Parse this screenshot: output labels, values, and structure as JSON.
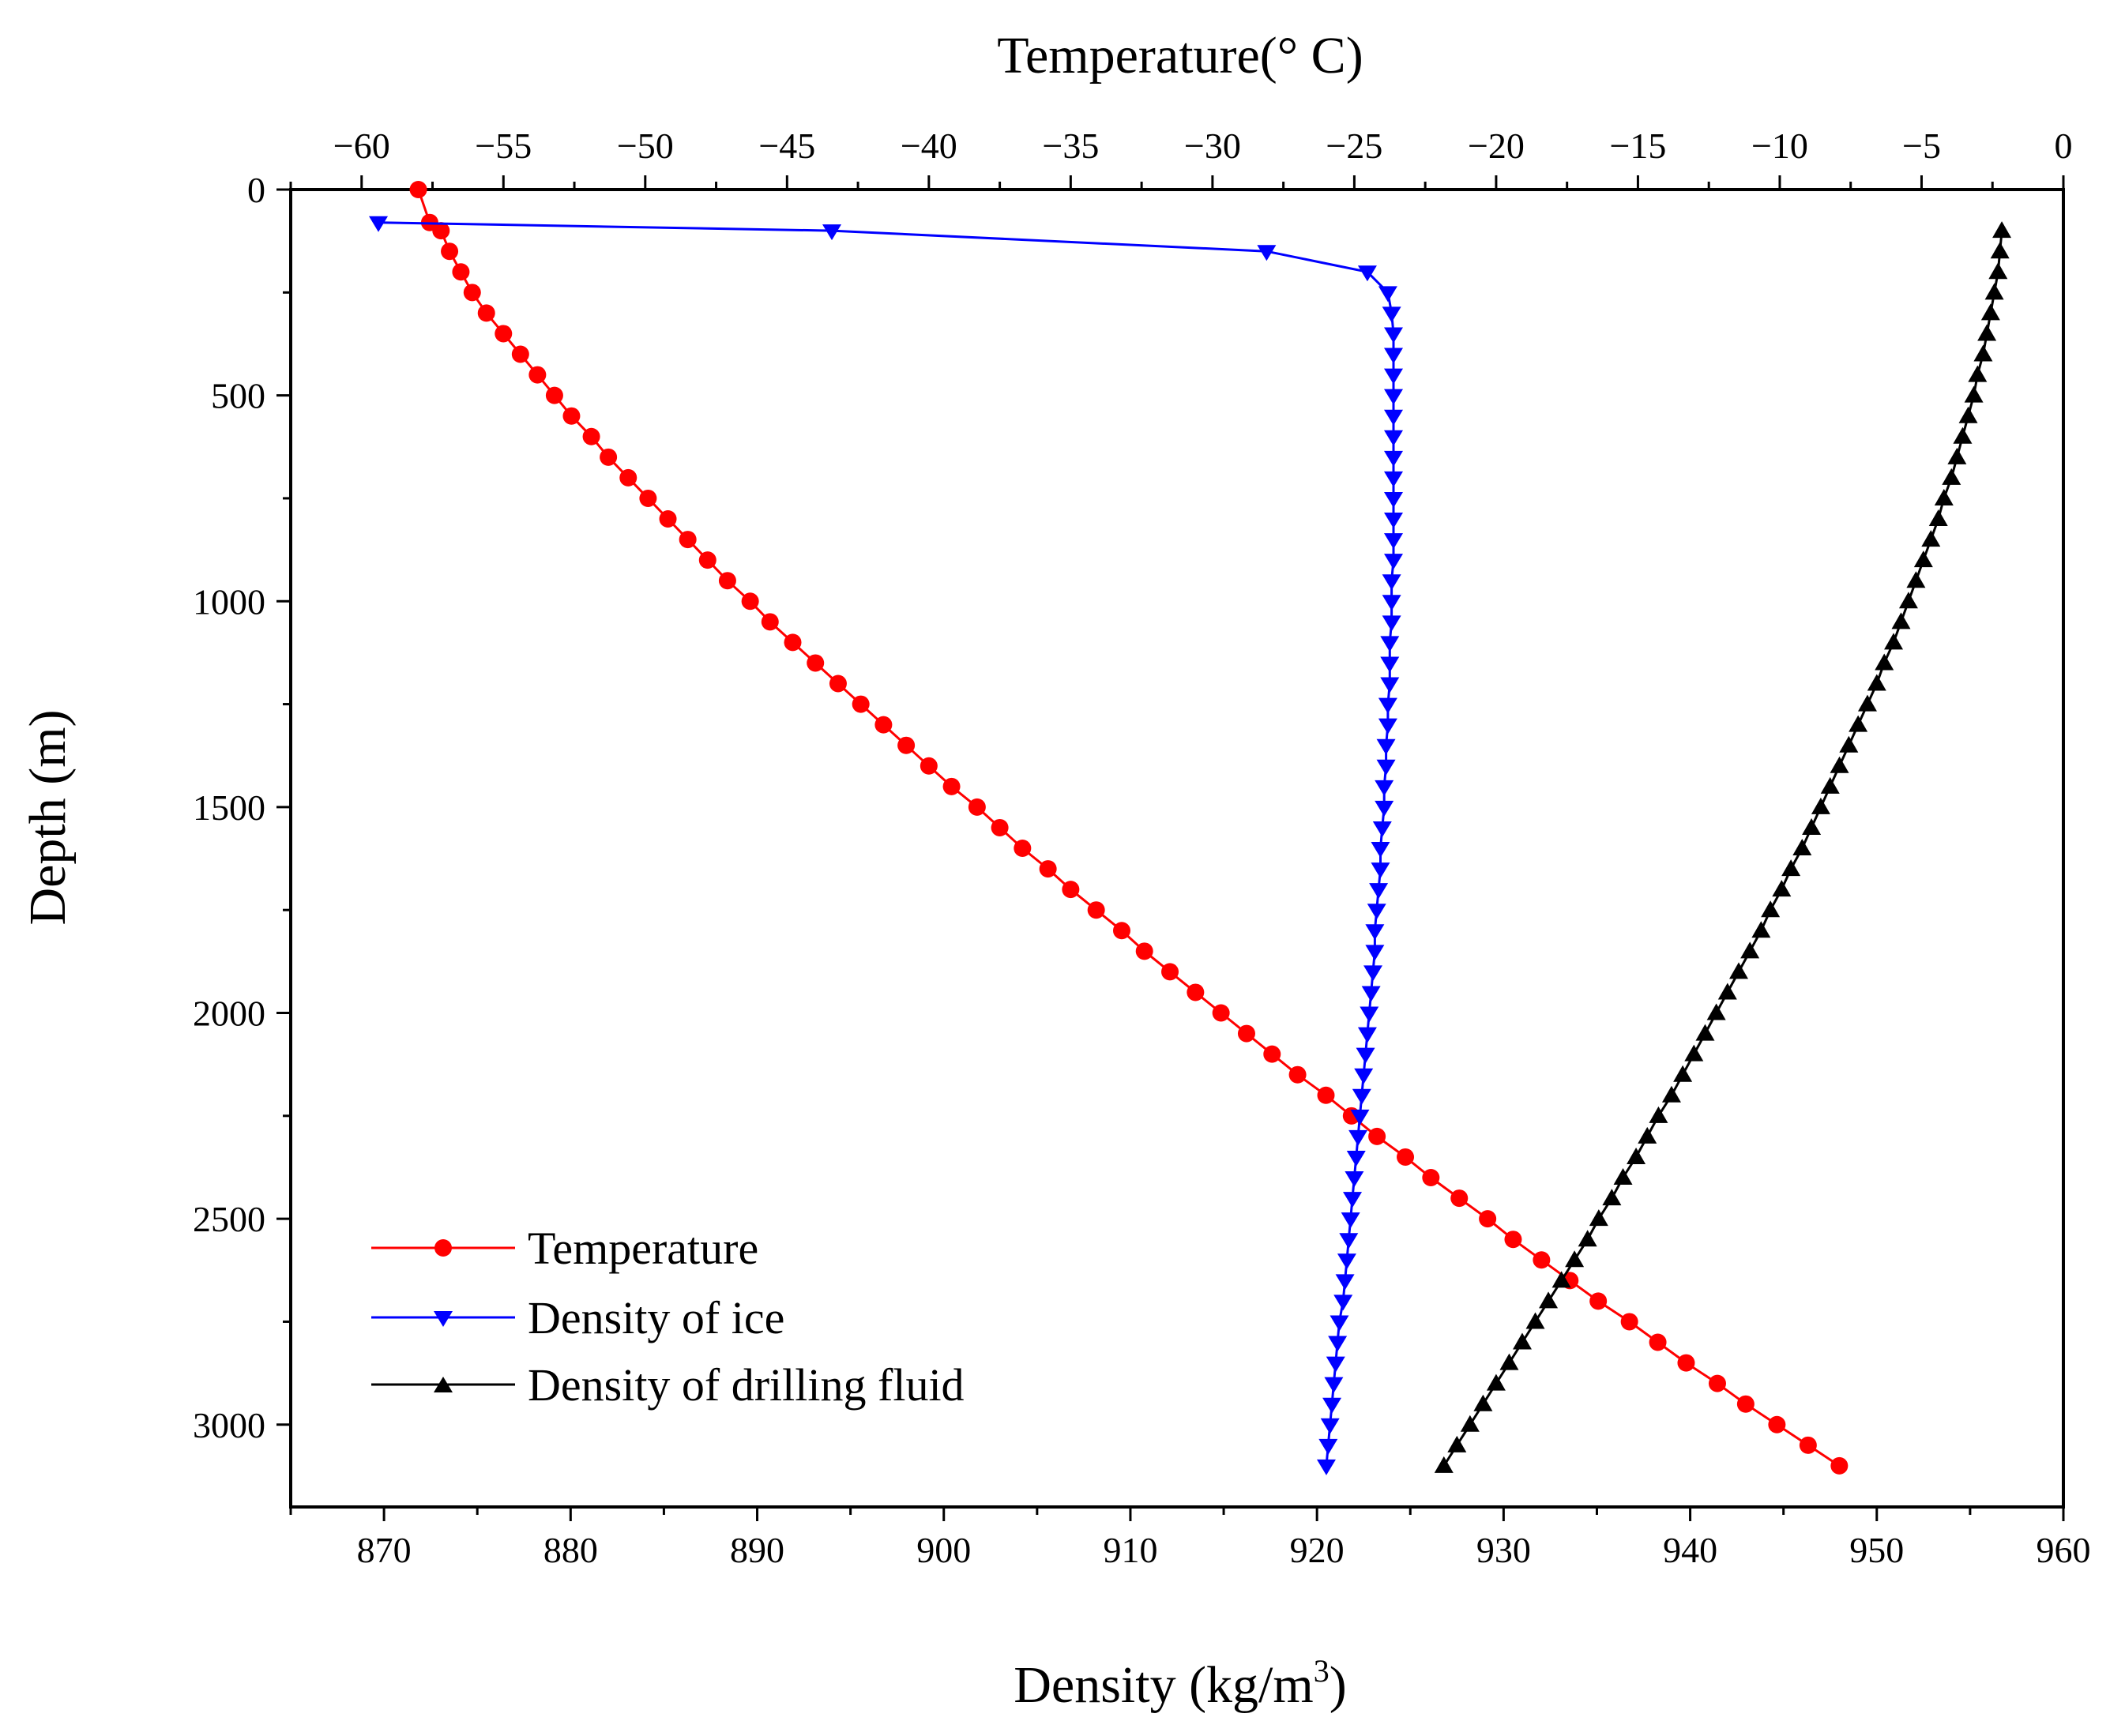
{
  "chart_data": {
    "type": "line",
    "title": "",
    "x_bottom": {
      "label": "Density (kg/m",
      "label_superscript": "3",
      "label_suffix": ")",
      "range": [
        865,
        960
      ],
      "ticks": [
        870,
        880,
        890,
        900,
        910,
        920,
        930,
        940,
        950,
        960
      ],
      "tick_labels": [
        "870",
        "880",
        "890",
        "900",
        "910",
        "920",
        "930",
        "940",
        "950",
        "960"
      ]
    },
    "x_top": {
      "label": "Temperature(° C)",
      "range": [
        -62.5,
        0
      ],
      "ticks": [
        -60,
        -55,
        -50,
        -45,
        -40,
        -35,
        -30,
        -25,
        -20,
        -15,
        -10,
        -5,
        0
      ],
      "tick_labels": [
        "−60",
        "−55",
        "−50",
        "−45",
        "−40",
        "−35",
        "−30",
        "−25",
        "−20",
        "−15",
        "−10",
        "−5",
        "0"
      ]
    },
    "y": {
      "label": "Depth (m)",
      "range": [
        0,
        3200
      ],
      "inverted": true,
      "ticks": [
        0,
        500,
        1000,
        1500,
        2000,
        2500,
        3000
      ],
      "tick_labels": [
        "0",
        "500",
        "1000",
        "1500",
        "2000",
        "2500",
        "3000"
      ]
    },
    "legend": {
      "position": "bottom-left",
      "entries": [
        {
          "name": "Temperature",
          "color": "#ff0000",
          "marker": "circle"
        },
        {
          "name": "Density of ice",
          "color": "#0000ff",
          "marker": "triangle-down"
        },
        {
          "name": "Density of drilling fluid",
          "color": "#000000",
          "marker": "triangle-up"
        }
      ]
    },
    "series": [
      {
        "name": "Temperature",
        "axis": "top",
        "color": "#ff0000",
        "marker": "circle",
        "points": [
          [
            -58,
            0
          ],
          [
            -57.6,
            80
          ],
          [
            -57.2,
            100
          ],
          [
            -56.9,
            150
          ],
          [
            -56.5,
            200
          ],
          [
            -56.1,
            250
          ],
          [
            -55.6,
            300
          ],
          [
            -55.0,
            350
          ],
          [
            -54.4,
            400
          ],
          [
            -53.8,
            450
          ],
          [
            -53.2,
            500
          ],
          [
            -52.6,
            550
          ],
          [
            -51.9,
            600
          ],
          [
            -51.3,
            650
          ],
          [
            -50.6,
            700
          ],
          [
            -49.9,
            750
          ],
          [
            -49.2,
            800
          ],
          [
            -48.5,
            850
          ],
          [
            -47.8,
            900
          ],
          [
            -47.1,
            950
          ],
          [
            -46.3,
            1000
          ],
          [
            -45.6,
            1050
          ],
          [
            -44.8,
            1100
          ],
          [
            -44.0,
            1150
          ],
          [
            -43.2,
            1200
          ],
          [
            -42.4,
            1250
          ],
          [
            -41.6,
            1300
          ],
          [
            -40.8,
            1350
          ],
          [
            -40.0,
            1400
          ],
          [
            -39.2,
            1450
          ],
          [
            -38.3,
            1500
          ],
          [
            -37.5,
            1550
          ],
          [
            -36.7,
            1600
          ],
          [
            -35.8,
            1650
          ],
          [
            -35.0,
            1700
          ],
          [
            -34.1,
            1750
          ],
          [
            -33.2,
            1800
          ],
          [
            -32.4,
            1850
          ],
          [
            -31.5,
            1900
          ],
          [
            -30.6,
            1950
          ],
          [
            -29.7,
            2000
          ],
          [
            -28.8,
            2050
          ],
          [
            -27.9,
            2100
          ],
          [
            -27.0,
            2150
          ],
          [
            -26.0,
            2200
          ],
          [
            -25.1,
            2250
          ],
          [
            -24.2,
            2300
          ],
          [
            -23.2,
            2350
          ],
          [
            -22.3,
            2400
          ],
          [
            -21.3,
            2450
          ],
          [
            -20.3,
            2500
          ],
          [
            -19.4,
            2550
          ],
          [
            -18.4,
            2600
          ],
          [
            -17.4,
            2650
          ],
          [
            -16.4,
            2700
          ],
          [
            -15.3,
            2750
          ],
          [
            -14.3,
            2800
          ],
          [
            -13.3,
            2850
          ],
          [
            -12.2,
            2900
          ],
          [
            -11.2,
            2950
          ],
          [
            -10.1,
            3000
          ],
          [
            -9.0,
            3050
          ],
          [
            -7.9,
            3100
          ]
        ]
      },
      {
        "name": "Density of ice",
        "axis": "bottom",
        "color": "#0000ff",
        "marker": "triangle-down",
        "points": [
          [
            869.7,
            80
          ],
          [
            894,
            100
          ],
          [
            917.3,
            150
          ],
          [
            922.7,
            200
          ],
          [
            923.8,
            250
          ],
          [
            924.0,
            300
          ],
          [
            924.1,
            350
          ],
          [
            924.1,
            400
          ],
          [
            924.1,
            450
          ],
          [
            924.1,
            500
          ],
          [
            924.1,
            550
          ],
          [
            924.1,
            600
          ],
          [
            924.1,
            650
          ],
          [
            924.1,
            700
          ],
          [
            924.1,
            750
          ],
          [
            924.1,
            800
          ],
          [
            924.1,
            850
          ],
          [
            924.1,
            900
          ],
          [
            924.0,
            950
          ],
          [
            924.0,
            1000
          ],
          [
            924.0,
            1050
          ],
          [
            923.9,
            1100
          ],
          [
            923.9,
            1150
          ],
          [
            923.9,
            1200
          ],
          [
            923.8,
            1250
          ],
          [
            923.8,
            1300
          ],
          [
            923.7,
            1350
          ],
          [
            923.7,
            1400
          ],
          [
            923.6,
            1450
          ],
          [
            923.6,
            1500
          ],
          [
            923.5,
            1550
          ],
          [
            923.4,
            1600
          ],
          [
            923.4,
            1650
          ],
          [
            923.3,
            1700
          ],
          [
            923.2,
            1750
          ],
          [
            923.1,
            1800
          ],
          [
            923.1,
            1850
          ],
          [
            923.0,
            1900
          ],
          [
            922.9,
            1950
          ],
          [
            922.8,
            2000
          ],
          [
            922.7,
            2050
          ],
          [
            922.6,
            2100
          ],
          [
            922.5,
            2150
          ],
          [
            922.4,
            2200
          ],
          [
            922.3,
            2250
          ],
          [
            922.2,
            2300
          ],
          [
            922.1,
            2350
          ],
          [
            922.0,
            2400
          ],
          [
            921.9,
            2450
          ],
          [
            921.8,
            2500
          ],
          [
            921.7,
            2550
          ],
          [
            921.6,
            2600
          ],
          [
            921.5,
            2650
          ],
          [
            921.4,
            2700
          ],
          [
            921.2,
            2750
          ],
          [
            921.1,
            2800
          ],
          [
            921.0,
            2850
          ],
          [
            920.9,
            2900
          ],
          [
            920.8,
            2950
          ],
          [
            920.7,
            3000
          ],
          [
            920.6,
            3050
          ],
          [
            920.5,
            3100
          ]
        ]
      },
      {
        "name": "Density of drilling fluid",
        "axis": "bottom",
        "color": "#000000",
        "marker": "triangle-up",
        "points": [
          [
            956.7,
            100
          ],
          [
            956.6,
            150
          ],
          [
            956.5,
            200
          ],
          [
            956.3,
            250
          ],
          [
            956.1,
            300
          ],
          [
            955.9,
            350
          ],
          [
            955.7,
            400
          ],
          [
            955.4,
            450
          ],
          [
            955.2,
            500
          ],
          [
            954.9,
            550
          ],
          [
            954.6,
            600
          ],
          [
            954.3,
            650
          ],
          [
            954.0,
            700
          ],
          [
            953.6,
            750
          ],
          [
            953.3,
            800
          ],
          [
            952.9,
            850
          ],
          [
            952.5,
            900
          ],
          [
            952.1,
            950
          ],
          [
            951.7,
            1000
          ],
          [
            951.3,
            1050
          ],
          [
            950.9,
            1100
          ],
          [
            950.4,
            1150
          ],
          [
            950.0,
            1200
          ],
          [
            949.5,
            1250
          ],
          [
            949.0,
            1300
          ],
          [
            948.5,
            1350
          ],
          [
            948.0,
            1400
          ],
          [
            947.5,
            1450
          ],
          [
            947.0,
            1500
          ],
          [
            946.5,
            1550
          ],
          [
            946.0,
            1600
          ],
          [
            945.4,
            1650
          ],
          [
            944.9,
            1700
          ],
          [
            944.3,
            1750
          ],
          [
            943.8,
            1800
          ],
          [
            943.2,
            1850
          ],
          [
            942.6,
            1900
          ],
          [
            942.0,
            1950
          ],
          [
            941.4,
            2000
          ],
          [
            940.8,
            2050
          ],
          [
            940.2,
            2100
          ],
          [
            939.6,
            2150
          ],
          [
            939.0,
            2200
          ],
          [
            938.3,
            2250
          ],
          [
            937.7,
            2300
          ],
          [
            937.1,
            2350
          ],
          [
            936.4,
            2400
          ],
          [
            935.8,
            2450
          ],
          [
            935.1,
            2500
          ],
          [
            934.5,
            2550
          ],
          [
            933.8,
            2600
          ],
          [
            933.1,
            2650
          ],
          [
            932.4,
            2700
          ],
          [
            931.7,
            2750
          ],
          [
            931.0,
            2800
          ],
          [
            930.3,
            2850
          ],
          [
            929.6,
            2900
          ],
          [
            928.9,
            2950
          ],
          [
            928.2,
            3000
          ],
          [
            927.5,
            3050
          ],
          [
            926.8,
            3100
          ]
        ]
      }
    ]
  }
}
